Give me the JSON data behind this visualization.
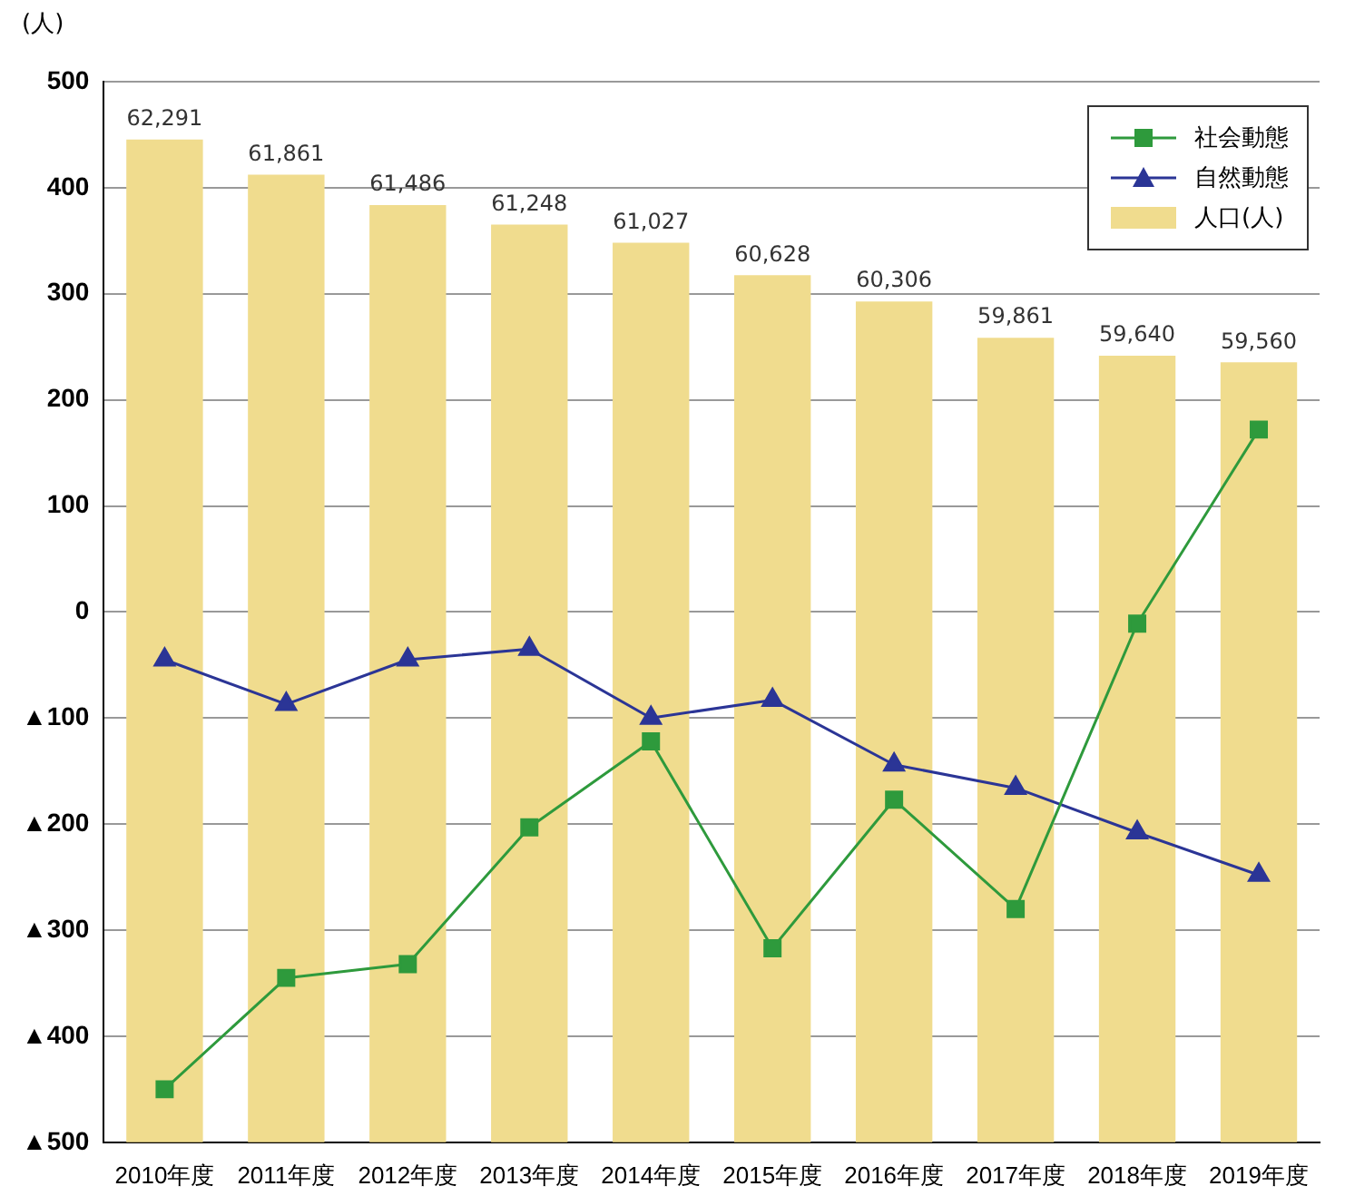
{
  "chart_data": {
    "type": "line",
    "ylabel": "(人)",
    "categories": [
      "2010年度",
      "2011年度",
      "2012年度",
      "2013年度",
      "2014年度",
      "2015年度",
      "2016年度",
      "2017年度",
      "2018年度",
      "2019年度"
    ],
    "series": [
      {
        "name": "社会動態",
        "color": "#2e9a3c",
        "marker": "square",
        "values": [
          -450,
          -345,
          -332,
          -203,
          -122,
          -317,
          -177,
          -280,
          -11,
          172
        ]
      },
      {
        "name": "自然動態",
        "color": "#2b3596",
        "marker": "triangle",
        "values": [
          -45,
          -87,
          -45,
          -35,
          -100,
          -83,
          -144,
          -166,
          -208,
          -248
        ]
      },
      {
        "name": "人口(人)",
        "type": "bar",
        "axis": "y2",
        "color": "#f0dc8e",
        "values": [
          62291,
          61861,
          61486,
          61248,
          61027,
          60628,
          60306,
          59861,
          59640,
          59560
        ],
        "value_labels": [
          "62,291",
          "61,861",
          "61,486",
          "61,248",
          "61,027",
          "60,628",
          "60,306",
          "59,861",
          "59,640",
          "59,560"
        ]
      }
    ],
    "ylim": [
      -500,
      500
    ],
    "yticks": [
      {
        "value": -500,
        "label": "▲500"
      },
      {
        "value": -400,
        "label": "▲400"
      },
      {
        "value": -300,
        "label": "▲300"
      },
      {
        "value": -200,
        "label": "▲200"
      },
      {
        "value": -100,
        "label": "▲100"
      },
      0,
      100,
      200,
      300,
      400,
      500
    ],
    "y2lim": [
      50000,
      63000
    ],
    "grid": "y",
    "legend": "top right"
  }
}
